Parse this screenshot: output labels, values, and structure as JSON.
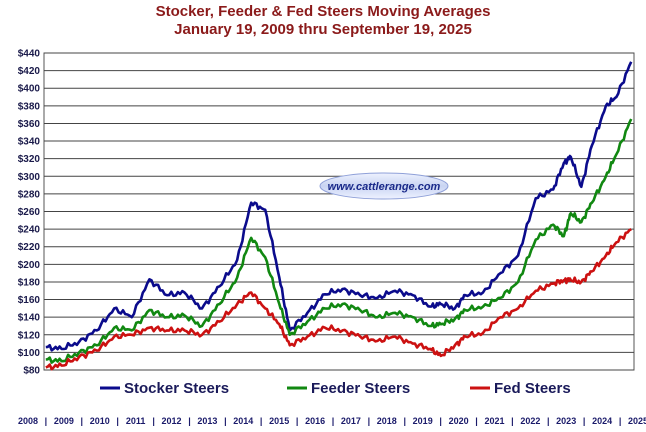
{
  "chart_data": {
    "type": "line",
    "title": "Stocker, Feeder & Fed Steers Moving Averages",
    "subtitle": "January 19, 2009 thru September 19, 2025",
    "watermark": "www.cattlerange.com",
    "ylim": [
      80,
      440
    ],
    "yticks": [
      "$80",
      "$100",
      "$120",
      "$140",
      "$160",
      "$180",
      "$200",
      "$220",
      "$240",
      "$260",
      "$280",
      "$300",
      "$320",
      "$340",
      "$360",
      "$380",
      "$400",
      "$420",
      "$440"
    ],
    "xticks": [
      "2008",
      "2009",
      "2010",
      "2011",
      "2012",
      "2013",
      "2014",
      "2015",
      "2016",
      "2017",
      "2018",
      "2019",
      "2020",
      "2021",
      "2022",
      "2023",
      "2024",
      "2025"
    ],
    "xtick_separator": "|",
    "grid": true,
    "legend_placement": "bottom",
    "x": [
      2009.05,
      2009.5,
      2010.0,
      2010.5,
      2011.0,
      2011.5,
      2012.0,
      2012.5,
      2013.0,
      2013.5,
      2014.0,
      2014.5,
      2014.9,
      2015.3,
      2015.7,
      2016.0,
      2016.5,
      2017.0,
      2017.5,
      2018.0,
      2018.5,
      2019.0,
      2019.5,
      2020.0,
      2020.3,
      2020.7,
      2021.0,
      2021.5,
      2022.0,
      2022.5,
      2023.0,
      2023.5,
      2023.8,
      2024.0,
      2024.3,
      2024.6,
      2025.0,
      2025.3,
      2025.72
    ],
    "series": [
      {
        "name": "Stocker Steers",
        "color": "#0b0b8c",
        "values": [
          106,
          104,
          112,
          125,
          150,
          140,
          183,
          165,
          168,
          150,
          175,
          205,
          270,
          262,
          185,
          125,
          145,
          166,
          172,
          165,
          162,
          170,
          165,
          152,
          155,
          150,
          165,
          168,
          190,
          210,
          275,
          285,
          315,
          322,
          288,
          335,
          380,
          390,
          430
        ]
      },
      {
        "name": "Feeder Steers",
        "color": "#118811",
        "values": [
          92,
          90,
          100,
          108,
          128,
          125,
          148,
          140,
          142,
          130,
          155,
          185,
          230,
          208,
          155,
          120,
          135,
          150,
          155,
          148,
          140,
          145,
          140,
          130,
          132,
          138,
          148,
          152,
          162,
          180,
          228,
          245,
          232,
          258,
          248,
          270,
          300,
          325,
          365
        ]
      },
      {
        "name": "Fed Steers",
        "color": "#cc1111",
        "values": [
          83,
          85,
          95,
          102,
          118,
          120,
          128,
          125,
          125,
          120,
          135,
          155,
          168,
          150,
          132,
          108,
          118,
          128,
          125,
          118,
          113,
          118,
          110,
          104,
          96,
          108,
          118,
          122,
          140,
          150,
          170,
          178,
          182,
          182,
          180,
          192,
          210,
          225,
          240
        ]
      }
    ]
  }
}
